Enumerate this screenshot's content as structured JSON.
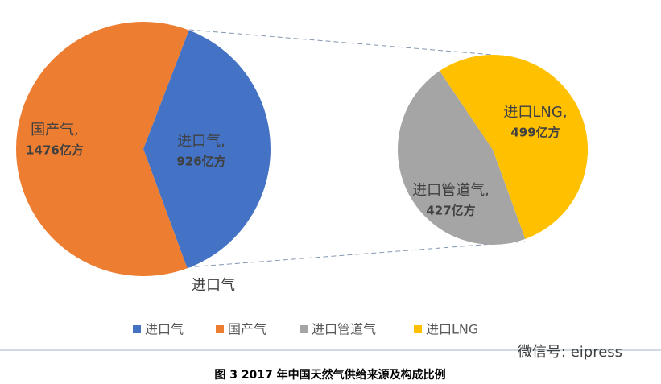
{
  "chart_data": {
    "type": "pie-of-pie",
    "title": "图 3   2017 年中国天然气供给来源及构成比例",
    "main": {
      "categories": [
        "国产气",
        "进口气"
      ],
      "labels": [
        "国产气,",
        "进口气,"
      ],
      "values": [
        1476,
        926
      ],
      "value_labels": [
        "1476亿方",
        "926亿方"
      ],
      "colors": [
        "#ed7d31",
        "#4472c4"
      ]
    },
    "secondary": {
      "categories": [
        "进口管道气",
        "进口LNG"
      ],
      "labels": [
        "进口管道气,",
        "进口LNG,"
      ],
      "values": [
        427,
        499
      ],
      "value_labels": [
        "427亿方",
        "499亿方"
      ],
      "colors": [
        "#a5a5a5",
        "#ffc000"
      ]
    },
    "legend": "bottom",
    "watermark": "微信号: eipress"
  }
}
